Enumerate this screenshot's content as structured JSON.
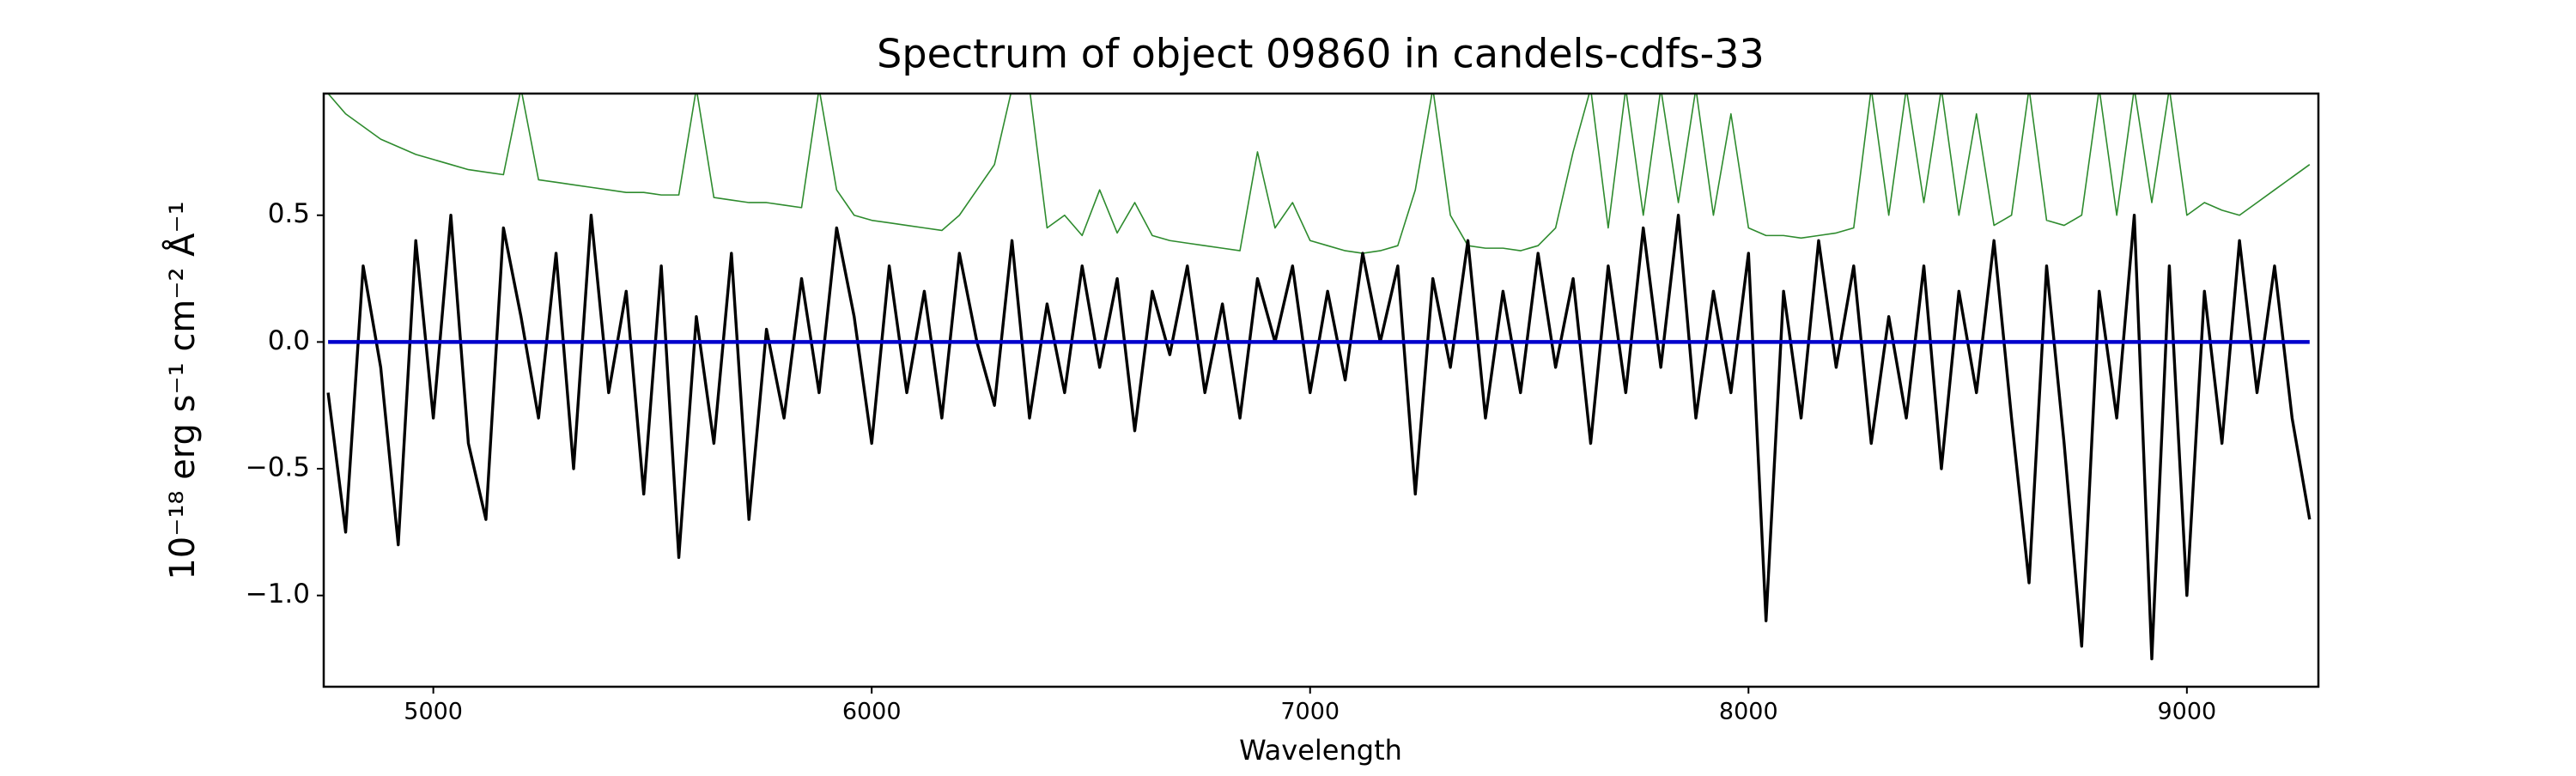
{
  "chart_data": {
    "type": "line",
    "title": "Spectrum of object 09860 in candels-cdfs-33",
    "xlabel": "Wavelength",
    "ylabel": "10⁻¹⁸ erg s⁻¹ cm⁻² Å⁻¹",
    "xlim": [
      4750,
      9300
    ],
    "ylim": [
      -1.36,
      0.98
    ],
    "xticks": [
      5000,
      6000,
      7000,
      8000,
      9000
    ],
    "yticks": [
      {
        "value": -1.0,
        "label": "−1.0"
      },
      {
        "value": -0.5,
        "label": "−0.5"
      },
      {
        "value": 0.0,
        "label": "0.0"
      },
      {
        "value": 0.5,
        "label": "0.5"
      }
    ],
    "x": [
      4760,
      4800,
      4840,
      4880,
      4920,
      4960,
      5000,
      5040,
      5080,
      5120,
      5160,
      5200,
      5240,
      5280,
      5320,
      5360,
      5400,
      5440,
      5480,
      5520,
      5560,
      5600,
      5640,
      5680,
      5720,
      5760,
      5800,
      5840,
      5880,
      5920,
      5960,
      6000,
      6040,
      6080,
      6120,
      6160,
      6200,
      6240,
      6280,
      6320,
      6360,
      6400,
      6440,
      6480,
      6520,
      6560,
      6600,
      6640,
      6680,
      6720,
      6760,
      6800,
      6840,
      6880,
      6920,
      6960,
      7000,
      7040,
      7080,
      7120,
      7160,
      7200,
      7240,
      7280,
      7320,
      7360,
      7400,
      7440,
      7480,
      7520,
      7560,
      7600,
      7640,
      7680,
      7720,
      7760,
      7800,
      7840,
      7880,
      7920,
      7960,
      8000,
      8040,
      8080,
      8120,
      8160,
      8200,
      8240,
      8280,
      8320,
      8360,
      8400,
      8440,
      8480,
      8520,
      8560,
      8600,
      8640,
      8680,
      8720,
      8760,
      8800,
      8840,
      8880,
      8920,
      8960,
      9000,
      9040,
      9080,
      9120,
      9160,
      9200,
      9240,
      9280
    ],
    "series": [
      {
        "color": "#2e8b2e",
        "width": 1.6,
        "values": [
          0.98,
          0.9,
          0.85,
          0.8,
          0.77,
          0.74,
          0.72,
          0.7,
          0.68,
          0.67,
          0.66,
          1.0,
          0.64,
          0.63,
          0.62,
          0.61,
          0.6,
          0.59,
          0.59,
          0.58,
          0.58,
          1.0,
          0.57,
          0.56,
          0.55,
          0.55,
          0.54,
          0.53,
          1.0,
          0.6,
          0.5,
          0.48,
          0.47,
          0.46,
          0.45,
          0.44,
          0.5,
          0.6,
          0.7,
          1.0,
          1.0,
          0.45,
          0.5,
          0.42,
          0.6,
          0.43,
          0.55,
          0.42,
          0.4,
          0.39,
          0.38,
          0.37,
          0.36,
          0.75,
          0.45,
          0.55,
          0.4,
          0.38,
          0.36,
          0.35,
          0.36,
          0.38,
          0.6,
          1.0,
          0.5,
          0.38,
          0.37,
          0.37,
          0.36,
          0.38,
          0.45,
          0.75,
          1.0,
          0.45,
          1.0,
          0.5,
          1.0,
          0.55,
          1.0,
          0.5,
          0.9,
          0.45,
          0.42,
          0.42,
          0.41,
          0.42,
          0.43,
          0.45,
          1.0,
          0.5,
          1.0,
          0.55,
          1.0,
          0.5,
          0.9,
          0.46,
          0.5,
          1.0,
          0.48,
          0.46,
          0.5,
          1.0,
          0.5,
          1.0,
          0.55,
          1.0,
          0.5,
          0.55,
          0.52,
          0.5,
          0.55,
          0.6,
          0.65,
          0.7
        ]
      },
      {
        "color": "#000000",
        "width": 3.4,
        "values": [
          -0.2,
          -0.75,
          0.3,
          -0.1,
          -0.8,
          0.4,
          -0.3,
          0.5,
          -0.4,
          -0.7,
          0.45,
          0.1,
          -0.3,
          0.35,
          -0.5,
          0.5,
          -0.2,
          0.2,
          -0.6,
          0.3,
          -0.85,
          0.1,
          -0.4,
          0.35,
          -0.7,
          0.05,
          -0.3,
          0.25,
          -0.2,
          0.45,
          0.1,
          -0.4,
          0.3,
          -0.2,
          0.2,
          -0.3,
          0.35,
          0.0,
          -0.25,
          0.4,
          -0.3,
          0.15,
          -0.2,
          0.3,
          -0.1,
          0.25,
          -0.35,
          0.2,
          -0.05,
          0.3,
          -0.2,
          0.15,
          -0.3,
          0.25,
          0.0,
          0.3,
          -0.2,
          0.2,
          -0.15,
          0.35,
          0.0,
          0.3,
          -0.6,
          0.25,
          -0.1,
          0.4,
          -0.3,
          0.2,
          -0.2,
          0.35,
          -0.1,
          0.25,
          -0.4,
          0.3,
          -0.2,
          0.45,
          -0.1,
          0.5,
          -0.3,
          0.2,
          -0.2,
          0.35,
          -1.1,
          0.2,
          -0.3,
          0.4,
          -0.1,
          0.3,
          -0.4,
          0.1,
          -0.3,
          0.3,
          -0.5,
          0.2,
          -0.2,
          0.4,
          -0.3,
          -0.95,
          0.3,
          -0.4,
          -1.2,
          0.2,
          -0.3,
          0.5,
          -1.25,
          0.3,
          -1.0,
          0.2,
          -0.4,
          0.4,
          -0.2,
          0.3,
          -0.3,
          -0.7
        ]
      },
      {
        "color": "#0000cc",
        "width": 4.5,
        "values": [
          0,
          0,
          0,
          0,
          0,
          0,
          0,
          0,
          0,
          0,
          0,
          0,
          0,
          0,
          0,
          0,
          0,
          0,
          0,
          0,
          0,
          0,
          0,
          0,
          0,
          0,
          0,
          0,
          0,
          0,
          0,
          0,
          0,
          0,
          0,
          0,
          0,
          0,
          0,
          0,
          0,
          0,
          0,
          0,
          0,
          0,
          0,
          0,
          0,
          0,
          0,
          0,
          0,
          0,
          0,
          0,
          0,
          0,
          0,
          0,
          0,
          0,
          0,
          0,
          0,
          0,
          0,
          0,
          0,
          0,
          0,
          0,
          0,
          0,
          0,
          0,
          0,
          0,
          0,
          0,
          0,
          0,
          0,
          0,
          0,
          0,
          0,
          0,
          0,
          0,
          0,
          0,
          0,
          0,
          0,
          0,
          0,
          0,
          0,
          0,
          0,
          0,
          0,
          0,
          0,
          0,
          0,
          0,
          0,
          0,
          0,
          0,
          0,
          0
        ]
      }
    ]
  }
}
